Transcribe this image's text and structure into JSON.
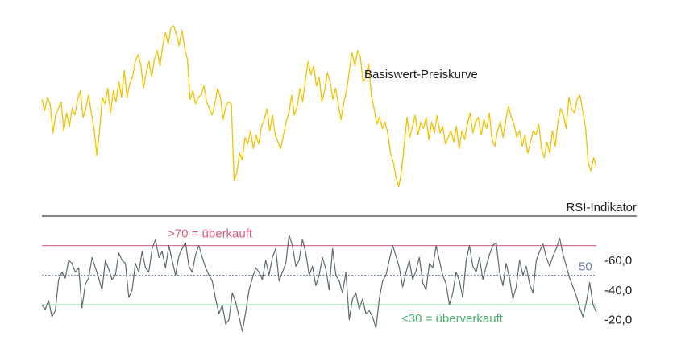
{
  "chart_data": [
    {
      "type": "line",
      "series": [
        {
          "name": "Basiswert-Preiskurve",
          "color": "#f2c200",
          "values": [
            62,
            57,
            63,
            60,
            47,
            55,
            58,
            61,
            48,
            56,
            50,
            58,
            55,
            62,
            66,
            54,
            58,
            64,
            56,
            49,
            37,
            48,
            63,
            60,
            67,
            56,
            66,
            61,
            70,
            63,
            75,
            63,
            69,
            72,
            79,
            82,
            78,
            67,
            74,
            79,
            72,
            80,
            84,
            77,
            86,
            92,
            87,
            94,
            95,
            91,
            86,
            93,
            85,
            80,
            62,
            66,
            60,
            63,
            64,
            68,
            61,
            58,
            55,
            60,
            67,
            63,
            53,
            59,
            61,
            60,
            26,
            29,
            38,
            35,
            45,
            42,
            48,
            40,
            46,
            42,
            50,
            53,
            58,
            48,
            55,
            46,
            43,
            40,
            46,
            52,
            56,
            64,
            55,
            59,
            67,
            61,
            71,
            79,
            73,
            77,
            68,
            72,
            61,
            66,
            74,
            70,
            62,
            67,
            60,
            53,
            61,
            66,
            75,
            83,
            77,
            84,
            81,
            70,
            72,
            78,
            64,
            58,
            51,
            54,
            49,
            52,
            47,
            38,
            34,
            27,
            23,
            30,
            42,
            54,
            45,
            50,
            55,
            46,
            52,
            49,
            54,
            44,
            52,
            47,
            55,
            47,
            50,
            42,
            45,
            48,
            43,
            50,
            40,
            48,
            44,
            51,
            56,
            47,
            52,
            54,
            46,
            53,
            49,
            56,
            44,
            41,
            48,
            52,
            45,
            53,
            59,
            54,
            51,
            45,
            48,
            41,
            46,
            38,
            43,
            48,
            46,
            51,
            40,
            36,
            43,
            38,
            48,
            41,
            52,
            58,
            55,
            49,
            63,
            58,
            56,
            62,
            64,
            57,
            50,
            34,
            30,
            36,
            32
          ]
        }
      ],
      "label": "Basiswert-Preiskurve",
      "title": "",
      "xlabel": "",
      "ylabel": ""
    },
    {
      "type": "line",
      "title": "RSI-Indikator",
      "ylim": [
        10,
        85
      ],
      "yticks": [
        "-60,0",
        "-40,0",
        "-20,0"
      ],
      "ytick_values": [
        60,
        40,
        20
      ],
      "reference_lines": [
        {
          "label": ">70 = überkauft",
          "value": 70,
          "color": "#e05a78"
        },
        {
          "label": "50",
          "value": 50,
          "color": "#6a7cb8"
        },
        {
          "label": "<30 = überverkauft",
          "value": 30,
          "color": "#4caf6e"
        }
      ],
      "series": [
        {
          "name": "RSI",
          "color": "#5c6a6c",
          "values": [
            30,
            27,
            33,
            22,
            26,
            47,
            52,
            48,
            60,
            58,
            52,
            55,
            28,
            44,
            48,
            62,
            55,
            48,
            40,
            60,
            54,
            47,
            50,
            65,
            60,
            58,
            35,
            40,
            58,
            52,
            66,
            55,
            52,
            68,
            74,
            62,
            66,
            55,
            70,
            60,
            50,
            63,
            68,
            72,
            56,
            52,
            64,
            70,
            62,
            55,
            50,
            46,
            34,
            24,
            30,
            17,
            20,
            38,
            32,
            22,
            12,
            25,
            40,
            48,
            55,
            52,
            47,
            60,
            50,
            62,
            68,
            46,
            52,
            58,
            77,
            70,
            56,
            60,
            74,
            65,
            50,
            56,
            43,
            50,
            62,
            54,
            40,
            68,
            50,
            46,
            38,
            52,
            20,
            34,
            38,
            27,
            34,
            24,
            26,
            22,
            14,
            34,
            46,
            50,
            60,
            70,
            63,
            55,
            42,
            52,
            60,
            47,
            53,
            62,
            45,
            40,
            58,
            55,
            70,
            60,
            50,
            44,
            30,
            38,
            52,
            46,
            35,
            60,
            70,
            56,
            52,
            62,
            47,
            56,
            64,
            70,
            72,
            52,
            43,
            58,
            48,
            34,
            42,
            60,
            50,
            56,
            44,
            38,
            60,
            66,
            71,
            62,
            56,
            63,
            68,
            75,
            64,
            56,
            48,
            42,
            36,
            28,
            22,
            32,
            45,
            30,
            25
          ]
        }
      ],
      "xlabel": "",
      "ylabel": ""
    }
  ]
}
